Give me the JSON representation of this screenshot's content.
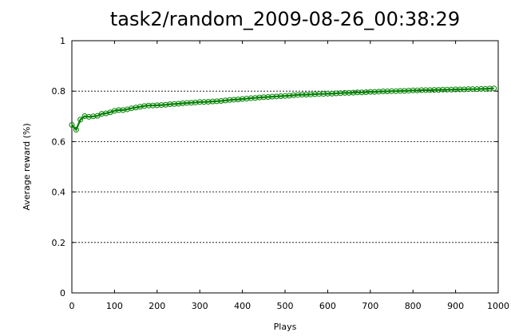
{
  "chart_data": {
    "type": "line",
    "title": "task2/random_2009-08-26_00:38:29",
    "xlabel": "Plays",
    "ylabel": "Average reward (%)",
    "xlim": [
      0,
      1000
    ],
    "ylim": [
      0,
      1
    ],
    "xticks": [
      0,
      100,
      200,
      300,
      400,
      500,
      600,
      700,
      800,
      900,
      1000
    ],
    "xtick_labels": [
      "0",
      "100",
      "200",
      "300",
      "400",
      "500",
      "600",
      "700",
      "800",
      "900",
      "1000"
    ],
    "yticks": [
      0,
      0.2,
      0.4,
      0.6,
      0.8,
      1
    ],
    "ytick_labels": [
      "0",
      "0.2",
      "0.4",
      "0.6",
      "0.8",
      "1"
    ],
    "grid": "horizontal-dashed",
    "legend": "none",
    "line_color": "#008000",
    "series": [
      {
        "x": [
          0,
          10,
          20,
          30,
          40,
          50,
          60,
          70,
          80,
          90,
          100,
          110,
          120,
          130,
          140,
          150,
          160,
          170,
          180,
          190,
          200,
          210,
          220,
          230,
          240,
          250,
          260,
          270,
          280,
          290,
          300,
          310,
          320,
          330,
          340,
          350,
          360,
          370,
          380,
          390,
          400,
          410,
          420,
          430,
          440,
          450,
          460,
          470,
          480,
          490,
          500,
          510,
          520,
          530,
          540,
          550,
          560,
          570,
          580,
          590,
          600,
          610,
          620,
          630,
          640,
          650,
          660,
          670,
          680,
          690,
          700,
          710,
          720,
          730,
          740,
          750,
          760,
          770,
          780,
          790,
          800,
          810,
          820,
          830,
          840,
          850,
          860,
          870,
          880,
          890,
          900,
          910,
          920,
          930,
          940,
          950,
          960,
          970,
          980,
          990
        ],
        "values": [
          0.666,
          0.647,
          0.687,
          0.701,
          0.698,
          0.7,
          0.702,
          0.71,
          0.712,
          0.716,
          0.722,
          0.725,
          0.725,
          0.728,
          0.732,
          0.735,
          0.738,
          0.741,
          0.743,
          0.743,
          0.744,
          0.745,
          0.746,
          0.748,
          0.749,
          0.75,
          0.752,
          0.753,
          0.754,
          0.755,
          0.757,
          0.757,
          0.758,
          0.759,
          0.76,
          0.761,
          0.763,
          0.765,
          0.766,
          0.767,
          0.769,
          0.77,
          0.772,
          0.773,
          0.775,
          0.776,
          0.777,
          0.778,
          0.779,
          0.78,
          0.781,
          0.782,
          0.784,
          0.785,
          0.786,
          0.786,
          0.787,
          0.788,
          0.789,
          0.789,
          0.79,
          0.79,
          0.791,
          0.792,
          0.793,
          0.793,
          0.794,
          0.795,
          0.795,
          0.796,
          0.797,
          0.797,
          0.798,
          0.799,
          0.799,
          0.8,
          0.8,
          0.801,
          0.801,
          0.802,
          0.803,
          0.803,
          0.804,
          0.804,
          0.804,
          0.805,
          0.805,
          0.806,
          0.806,
          0.806,
          0.807,
          0.807,
          0.807,
          0.808,
          0.808,
          0.808,
          0.809,
          0.809,
          0.81,
          0.811
        ]
      }
    ]
  }
}
